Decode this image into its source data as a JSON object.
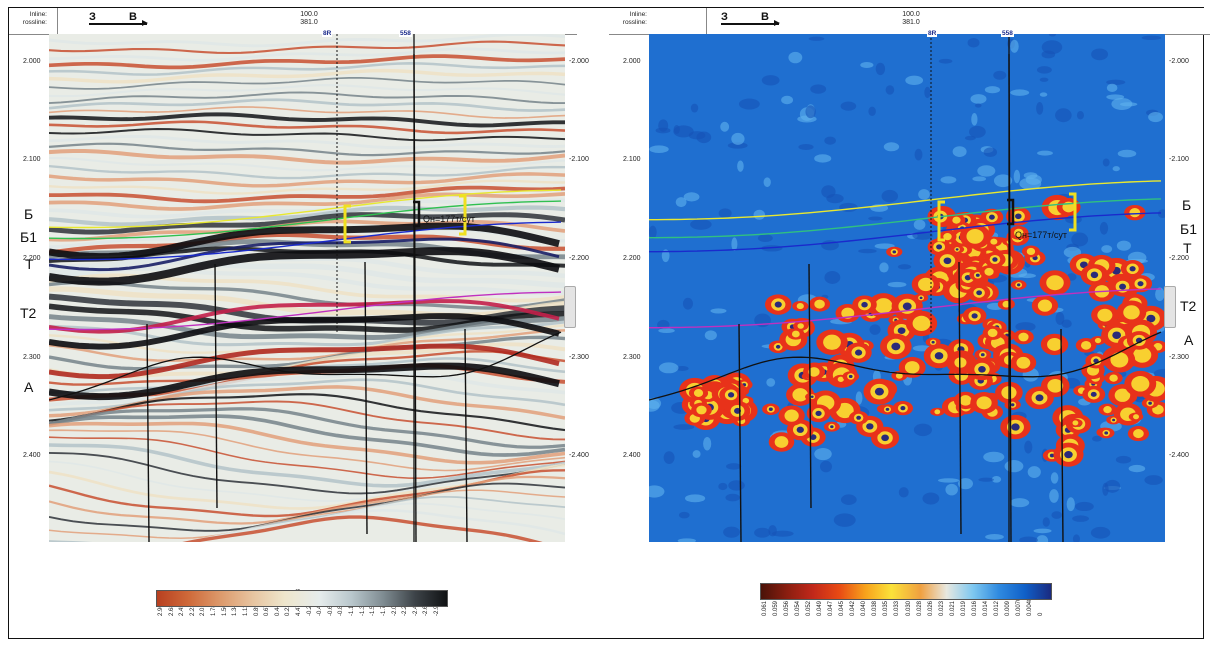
{
  "header": {
    "inline_label": "Inline:",
    "crossline_label": "rossline:",
    "dir_west": "З",
    "dir_east": "В",
    "position_top": "100.0",
    "position_bottom": "381.0"
  },
  "time_axis": [
    "2.000",
    "2.100",
    "2.200",
    "2.300",
    "2.400"
  ],
  "right_axis": [
    "-2.000",
    "-2.100",
    "-2.200",
    "-2.300",
    "-2.400"
  ],
  "wells": [
    "8R",
    "558"
  ],
  "horizons": {
    "left": [
      "Б",
      "Б1",
      "Т",
      "Т2",
      "А"
    ],
    "right": [
      "Б",
      "Б1",
      "Т",
      "Т2",
      "А"
    ]
  },
  "annotation": "Qн=177т/сут",
  "colorbar_left": {
    "ticks": [
      "2.903",
      "2.680",
      "2.457",
      "2.233",
      "2.010",
      "1.787",
      "1.563",
      "1.340",
      "1.117",
      "0.893",
      "0.670",
      "0.447",
      "0.223",
      "4.47e-008",
      "-0.223",
      "-0.447",
      "-0.670",
      "-0.893",
      "-1.117",
      "-1.340",
      "-1.563",
      "-1.787",
      "-2.010",
      "-2.233",
      "-2.457",
      "-2.680",
      "-2.903"
    ],
    "colors": [
      "#b84020",
      "#cf6a3a",
      "#dd9a6c",
      "#e7c4a0",
      "#eee6cc",
      "#e6ecec",
      "#b9c7cc",
      "#7f8c92",
      "#3d4348",
      "#101214"
    ]
  },
  "colorbar_right": {
    "ticks": [
      "0.061",
      "0.059",
      "0.056",
      "0.054",
      "0.052",
      "0.049",
      "0.047",
      "0.045",
      "0.042",
      "0.040",
      "0.038",
      "0.035",
      "0.033",
      "0.030",
      "0.028",
      "0.026",
      "0.023",
      "0.021",
      "0.019",
      "0.016",
      "0.014",
      "0.012",
      "0.009",
      "0.00705",
      "0.0048",
      "0"
    ],
    "colors": [
      "#4a1208",
      "#8a1e10",
      "#c2281a",
      "#e84a14",
      "#f7a21c",
      "#fbe23a",
      "#f0a040",
      "#e8e8e0",
      "#7fc8f0",
      "#2f8ae0",
      "#1060c8",
      "#1a2a80"
    ]
  }
}
